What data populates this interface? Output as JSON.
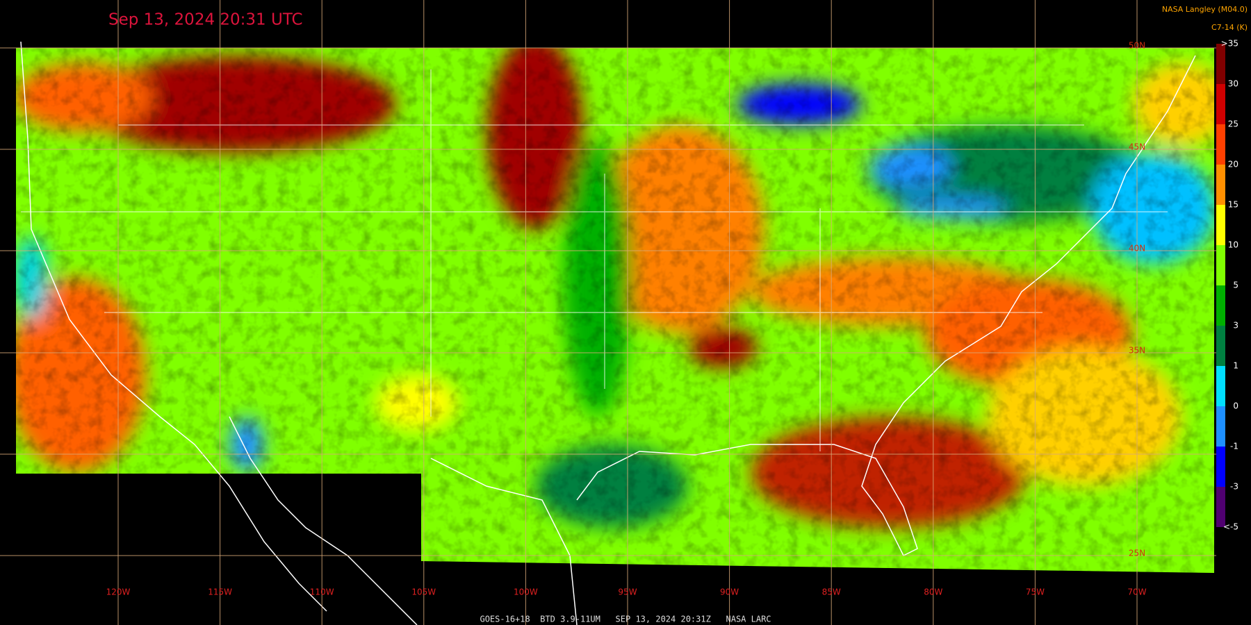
{
  "header": {
    "title": "Sep 13, 2024 20:31 UTC",
    "credit": "NASA Langley (M04.0)",
    "units": "C7-14 (K)"
  },
  "longitude_labels": [
    "120W",
    "115W",
    "110W",
    "105W",
    "100W",
    "95W",
    "90W",
    "85W",
    "80W",
    "75W",
    "70W"
  ],
  "latitude_labels": [
    "50N",
    "45N",
    "40N",
    "35N",
    "25N"
  ],
  "colorbar_labels": [
    ">35",
    "30",
    "25",
    "20",
    "15",
    "10",
    "5",
    "3",
    "1",
    "0",
    "-1",
    "-3",
    "<-5"
  ],
  "footer": "GOES-16+18  BTD 3.9-11UM   SEP 13, 2024 20:31Z   NASA LARC"
}
